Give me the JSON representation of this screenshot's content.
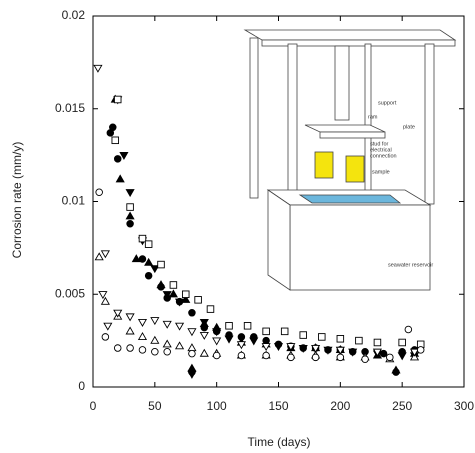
{
  "chart_data": {
    "type": "scatter",
    "x_label": "Time (days)",
    "y_label": "Corrosion rate (mm/y)",
    "xlim": [
      0,
      300
    ],
    "xticks": [
      0,
      50,
      100,
      150,
      200,
      250,
      300
    ],
    "ylim": [
      0,
      0.02
    ],
    "yticks": [
      0,
      0.005,
      0.01,
      0.015,
      0.02
    ],
    "series": [
      {
        "marker": "circle",
        "filled": true,
        "color": "#000000",
        "x": [
          14,
          16,
          20,
          30,
          40,
          45,
          55,
          60,
          70,
          80,
          80,
          90,
          100,
          110,
          120,
          130,
          140,
          150,
          160,
          170,
          180,
          190,
          200,
          210,
          220,
          235,
          245,
          250,
          260
        ],
        "values": [
          0.0137,
          0.014,
          0.0123,
          0.0088,
          0.0069,
          0.006,
          0.0054,
          0.0048,
          0.0046,
          0.004,
          0.0008,
          0.0032,
          0.003,
          0.0028,
          0.0027,
          0.0027,
          0.0025,
          0.0023,
          0.0022,
          0.0021,
          0.0021,
          0.002,
          0.002,
          0.0019,
          0.0019,
          0.0018,
          0.0008,
          0.0019,
          0.002
        ]
      },
      {
        "marker": "triangle-up",
        "filled": true,
        "color": "#000000",
        "x": [
          18,
          22,
          30,
          35,
          45,
          55,
          65,
          75,
          80,
          90,
          100,
          120,
          140,
          160,
          180,
          200,
          230,
          245,
          260
        ],
        "values": [
          0.0155,
          0.0112,
          0.0092,
          0.0069,
          0.0067,
          0.0055,
          0.005,
          0.0047,
          0.001,
          0.0034,
          0.0032,
          0.0024,
          0.0023,
          0.0021,
          0.0021,
          0.002,
          0.0017,
          0.0009,
          0.0018
        ]
      },
      {
        "marker": "triangle-down",
        "filled": true,
        "color": "#000000",
        "x": [
          20,
          25,
          30,
          40,
          50,
          60,
          70,
          80,
          90,
          100,
          110,
          130,
          150,
          170,
          190,
          210,
          230,
          250,
          260
        ],
        "values": [
          0.0155,
          0.0125,
          0.0105,
          0.0079,
          0.0064,
          0.005,
          0.0046,
          0.0007,
          0.0035,
          0.003,
          0.0026,
          0.0025,
          0.0022,
          0.0021,
          0.002,
          0.0019,
          0.0018,
          0.0017,
          0.0017
        ]
      },
      {
        "marker": "square",
        "filled": false,
        "color": "#000000",
        "x": [
          18,
          20,
          30,
          40,
          45,
          55,
          65,
          75,
          85,
          95,
          110,
          125,
          140,
          155,
          170,
          185,
          200,
          215,
          230,
          250,
          265
        ],
        "values": [
          0.0133,
          0.0155,
          0.0097,
          0.008,
          0.0077,
          0.0066,
          0.0055,
          0.005,
          0.0047,
          0.0042,
          0.0033,
          0.0033,
          0.003,
          0.003,
          0.0028,
          0.0027,
          0.0026,
          0.0025,
          0.0024,
          0.0024,
          0.0023
        ]
      },
      {
        "marker": "triangle-up",
        "filled": false,
        "color": "#000000",
        "x": [
          5,
          10,
          20,
          30,
          40,
          50,
          60,
          70,
          80,
          90,
          100,
          120,
          140,
          160,
          180,
          200,
          220,
          240,
          260
        ],
        "values": [
          0.007,
          0.0046,
          0.0038,
          0.003,
          0.0027,
          0.0025,
          0.0023,
          0.0022,
          0.0021,
          0.0018,
          0.0018,
          0.0017,
          0.0017,
          0.0017,
          0.0017,
          0.0016,
          0.0016,
          0.0015,
          0.0016
        ]
      },
      {
        "marker": "triangle-down",
        "filled": false,
        "color": "#000000",
        "x": [
          4,
          8,
          10,
          12,
          20,
          30,
          40,
          50,
          60,
          70,
          80,
          90,
          100,
          120,
          140,
          160,
          180,
          200,
          230,
          260
        ],
        "values": [
          0.0172,
          0.005,
          0.0072,
          0.0033,
          0.004,
          0.0038,
          0.0035,
          0.0036,
          0.0034,
          0.0033,
          0.003,
          0.0028,
          0.0025,
          0.0023,
          0.0022,
          0.0022,
          0.0021,
          0.002,
          0.0019,
          0.0019
        ]
      },
      {
        "marker": "circle",
        "filled": false,
        "color": "#000000",
        "x": [
          5,
          10,
          20,
          30,
          40,
          50,
          60,
          80,
          100,
          120,
          140,
          160,
          180,
          200,
          220,
          240,
          255,
          265
        ],
        "values": [
          0.0105,
          0.0027,
          0.0021,
          0.0021,
          0.002,
          0.0019,
          0.0019,
          0.0018,
          0.0017,
          0.0017,
          0.0017,
          0.0016,
          0.0016,
          0.0016,
          0.0015,
          0.0016,
          0.0031,
          0.002
        ]
      }
    ]
  },
  "inset": {
    "labels": [
      "support",
      "ram",
      "plate",
      "stud for",
      "electrical",
      "connection",
      "sample",
      "seawater reservoir"
    ]
  }
}
